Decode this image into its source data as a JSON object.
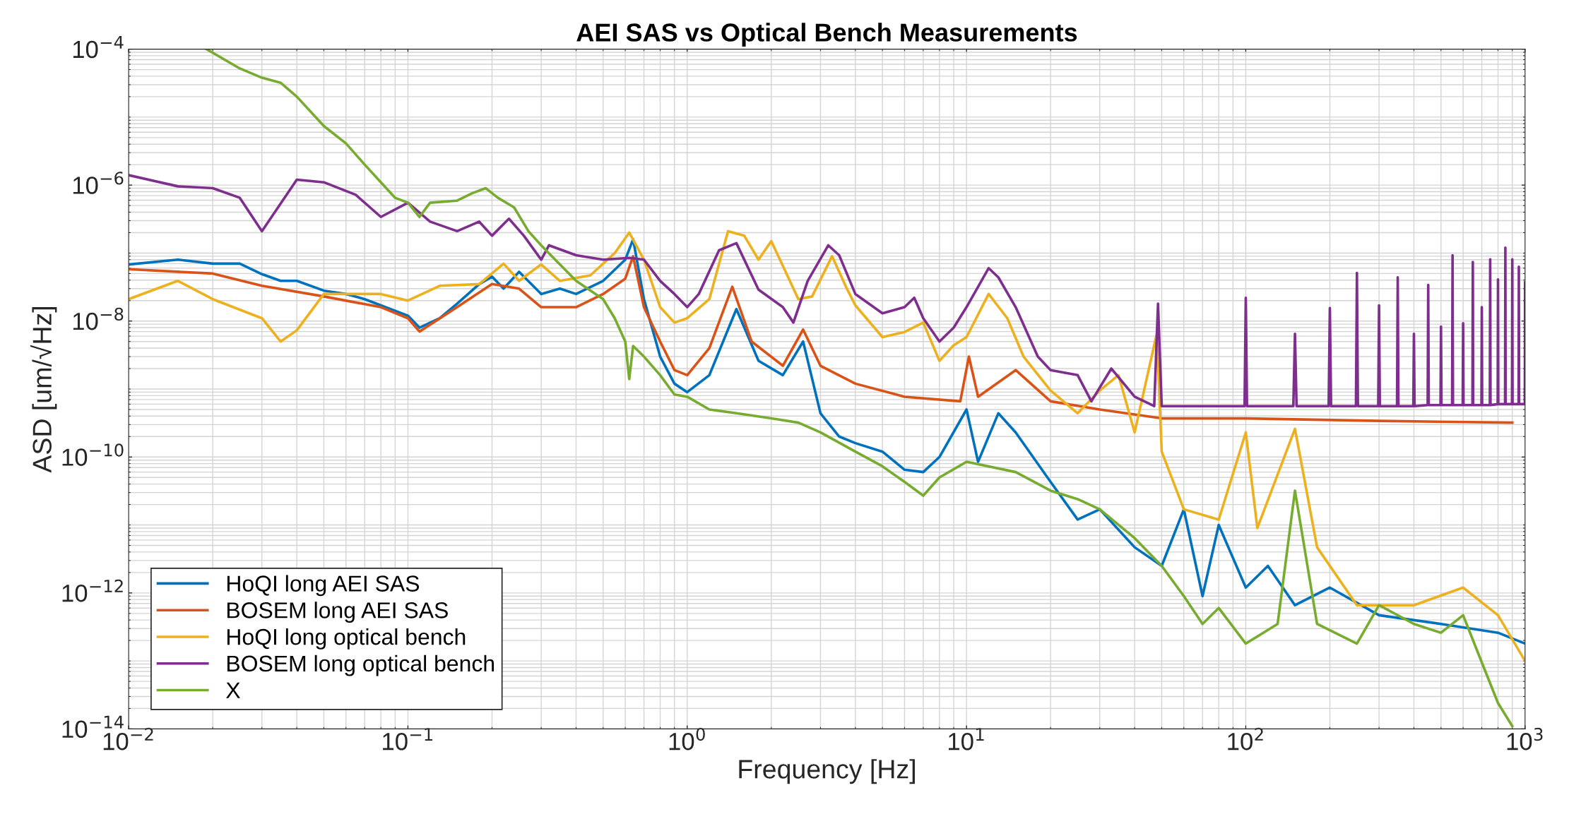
{
  "chart_data": {
    "type": "line",
    "title": "AEI SAS vs Optical Bench Measurements",
    "xlabel": "Frequency [Hz]",
    "ylabel": "ASD [um/√Hz]",
    "log": "xy",
    "grid": true,
    "legend": "bottom left",
    "line_style": "solid",
    "marker": "none",
    "xlim": [
      0.01,
      1000
    ],
    "ylim": [
      1e-14,
      0.0001
    ],
    "xticks": [
      {
        "value": 0.01,
        "label": "10$^{−2}$"
      },
      {
        "value": 0.1,
        "label": "10$^{−1}$"
      },
      {
        "value": 1,
        "label": "10$^{0}$"
      },
      {
        "value": 10,
        "label": "10$^{1}$"
      },
      {
        "value": 100,
        "label": "10$^{2}$"
      },
      {
        "value": 1000,
        "label": "10$^{3}$"
      }
    ],
    "yticks": [
      {
        "value": 1e-14,
        "label": "10$^{−14}$"
      },
      {
        "value": 1e-12,
        "label": "10$^{−12}$"
      },
      {
        "value": 1e-10,
        "label": "10$^{−10}$"
      },
      {
        "value": 1e-08,
        "label": "10$^{−8}$"
      },
      {
        "value": 1e-06,
        "label": "10$^{−6}$"
      },
      {
        "value": 0.0001,
        "label": "10$^{−4}$"
      }
    ],
    "series": [
      {
        "name": "HoQI long AEI SAS",
        "color": "#0072bd",
        "x": [
          0.01,
          0.015,
          0.02,
          0.025,
          0.03,
          0.035,
          0.04,
          0.05,
          0.06,
          0.07,
          0.08,
          0.1,
          0.11,
          0.13,
          0.15,
          0.18,
          0.2,
          0.22,
          0.25,
          0.3,
          0.35,
          0.4,
          0.5,
          0.6,
          0.64,
          0.7,
          0.8,
          0.9,
          1.0,
          1.2,
          1.5,
          1.8,
          2.2,
          2.6,
          3.0,
          3.5,
          4,
          5,
          6,
          7,
          8,
          10,
          11,
          13,
          15,
          20,
          25,
          30,
          40,
          50,
          60,
          70,
          80,
          100,
          120,
          150,
          200,
          300,
          500,
          800,
          1000
        ],
        "values": [
          6.8e-08,
          8e-08,
          7e-08,
          7e-08,
          4.9e-08,
          3.9e-08,
          3.9e-08,
          2.8e-08,
          2.5e-08,
          2.1e-08,
          1.7e-08,
          1.2e-08,
          8e-09,
          1.1e-08,
          1.8e-08,
          3.5e-08,
          4.5e-08,
          3e-08,
          5.3e-08,
          2.5e-08,
          3e-08,
          2.5e-08,
          3.9e-08,
          8e-08,
          1.6e-07,
          2.1e-08,
          3e-09,
          1.2e-09,
          9e-10,
          1.6e-09,
          1.5e-08,
          2.6e-09,
          1.6e-09,
          5e-09,
          4.4e-10,
          2e-10,
          1.6e-10,
          1.2e-10,
          6.5e-11,
          6e-11,
          1e-10,
          5e-10,
          8.5e-11,
          4.4e-10,
          2.3e-10,
          4.3e-11,
          1.2e-11,
          1.7e-11,
          4.7e-12,
          2.5e-12,
          1.7e-11,
          9e-13,
          1e-11,
          1.2e-12,
          2.5e-12,
          6.6e-13,
          1.2e-12,
          4.7e-13,
          3.5e-13,
          2.6e-13,
          1.8e-13
        ]
      },
      {
        "name": "BOSEM long AEI SAS",
        "color": "#d95319",
        "x": [
          0.01,
          0.02,
          0.03,
          0.05,
          0.08,
          0.1,
          0.11,
          0.15,
          0.2,
          0.25,
          0.3,
          0.4,
          0.5,
          0.6,
          0.64,
          0.7,
          0.8,
          0.9,
          1.0,
          1.2,
          1.45,
          1.7,
          2.2,
          2.6,
          3,
          4,
          6,
          9.5,
          10.2,
          11,
          15,
          20,
          30,
          50,
          100,
          300,
          900
        ],
        "values": [
          5.8e-08,
          5e-08,
          3.3e-08,
          2.3e-08,
          1.6e-08,
          1.1e-08,
          7e-09,
          1.6e-08,
          3.5e-08,
          3e-08,
          1.6e-08,
          1.6e-08,
          2.5e-08,
          4.2e-08,
          9e-08,
          1.6e-08,
          5e-09,
          1.9e-09,
          1.6e-09,
          4e-09,
          3.2e-08,
          5e-09,
          2.2e-09,
          7.5e-09,
          2.2e-09,
          1.2e-09,
          7.7e-10,
          6.6e-10,
          3e-09,
          7.7e-10,
          1.9e-09,
          6.6e-10,
          5e-10,
          3.7e-10,
          3.7e-10,
          3.4e-10,
          3.2e-10
        ]
      },
      {
        "name": "HoQI long optical bench",
        "color": "#edb120",
        "x": [
          0.01,
          0.015,
          0.02,
          0.03,
          0.035,
          0.04,
          0.05,
          0.08,
          0.1,
          0.13,
          0.18,
          0.22,
          0.25,
          0.3,
          0.35,
          0.45,
          0.55,
          0.62,
          0.7,
          0.8,
          0.9,
          1.0,
          1.2,
          1.4,
          1.6,
          1.8,
          2.0,
          2.5,
          2.8,
          3.3,
          3.7,
          4,
          5,
          6,
          7,
          8,
          9,
          10,
          12,
          14,
          16,
          20,
          25,
          30,
          35,
          40,
          48,
          50,
          60,
          80,
          100,
          110,
          150,
          180,
          250,
          400,
          600,
          800,
          1000
        ],
        "values": [
          2.1e-08,
          3.9e-08,
          2.1e-08,
          1.1e-08,
          5e-09,
          7.3e-09,
          2.5e-08,
          2.5e-08,
          2e-08,
          3.3e-08,
          3.5e-08,
          7e-08,
          3.9e-08,
          6.8e-08,
          3.9e-08,
          4.7e-08,
          1e-07,
          2e-07,
          8e-08,
          1.6e-08,
          9.5e-09,
          1.1e-08,
          2.1e-08,
          2.1e-07,
          1.8e-07,
          8e-08,
          1.5e-07,
          2.1e-08,
          2.3e-08,
          9e-08,
          3.2e-08,
          1.7e-08,
          5.8e-09,
          6.9e-09,
          9.5e-09,
          2.6e-09,
          4.4e-09,
          5.8e-09,
          2.5e-08,
          1.1e-08,
          3e-09,
          9.5e-10,
          4.4e-10,
          9.5e-10,
          1.6e-09,
          2.3e-10,
          6.5e-09,
          1.2e-10,
          1.7e-11,
          1.2e-11,
          2.3e-10,
          9e-12,
          2.6e-10,
          4.7e-12,
          6.6e-13,
          6.6e-13,
          1.2e-12,
          4.7e-13,
          1e-13
        ]
      },
      {
        "name": "BOSEM long optical bench",
        "color": "#7e2f8e",
        "x": [
          0.01,
          0.015,
          0.02,
          0.025,
          0.03,
          0.04,
          0.05,
          0.065,
          0.08,
          0.1,
          0.12,
          0.15,
          0.18,
          0.2,
          0.23,
          0.26,
          0.3,
          0.32,
          0.4,
          0.5,
          0.62,
          0.7,
          0.8,
          0.9,
          1.0,
          1.1,
          1.3,
          1.5,
          1.8,
          2.2,
          2.4,
          2.7,
          3.2,
          3.5,
          4,
          5,
          6,
          6.5,
          7,
          8,
          9,
          10,
          12,
          13,
          15,
          18,
          20,
          25,
          28,
          33,
          40,
          47,
          48.5,
          50,
          80,
          99,
          100,
          101,
          148,
          150,
          152,
          198,
          200,
          202,
          248,
          250,
          252,
          298,
          300,
          302,
          348,
          350,
          352,
          398,
          400,
          402,
          448,
          450,
          452,
          498,
          500,
          502,
          548,
          550,
          552,
          598,
          600,
          602,
          648,
          650,
          652,
          698,
          700,
          702,
          748,
          750,
          752,
          798,
          800,
          802,
          848,
          850,
          852,
          898,
          900,
          902,
          948,
          950,
          952,
          998,
          1000
        ],
        "values": [
          1.4e-06,
          9.6e-07,
          9e-07,
          6.5e-07,
          2.1e-07,
          1.2e-06,
          1.1e-06,
          7.2e-07,
          3.4e-07,
          5.5e-07,
          2.9e-07,
          2.1e-07,
          2.9e-07,
          1.8e-07,
          3.2e-07,
          1.8e-07,
          8e-08,
          1.3e-07,
          9.3e-08,
          8e-08,
          8.5e-08,
          8e-08,
          3.9e-08,
          2.5e-08,
          1.6e-08,
          2.5e-08,
          1.1e-07,
          1.4e-07,
          2.9e-08,
          1.6e-08,
          9.5e-09,
          3.9e-08,
          1.3e-07,
          9.3e-08,
          2.5e-08,
          1.3e-08,
          1.6e-08,
          2.2e-08,
          1.1e-08,
          5e-09,
          8e-09,
          1.6e-08,
          6e-08,
          4.4e-08,
          1.6e-08,
          3e-09,
          1.9e-09,
          1.6e-09,
          6.6e-10,
          2e-09,
          7.7e-10,
          5.6e-10,
          1.8e-08,
          5.6e-10,
          5.6e-10,
          5.6e-10,
          2.2e-08,
          5.6e-10,
          5.6e-10,
          6.5e-09,
          5.6e-10,
          5.6e-10,
          1.55e-08,
          5.6e-10,
          5.6e-10,
          5.1e-08,
          5.6e-10,
          5.6e-10,
          1.7e-08,
          5.6e-10,
          5.6e-10,
          4.4e-08,
          5.6e-10,
          5.6e-10,
          6.5e-09,
          5.6e-10,
          5.8e-10,
          3.4e-08,
          5.8e-10,
          5.8e-10,
          8.3e-09,
          5.8e-10,
          5.8e-10,
          9.3e-08,
          5.8e-10,
          5.8e-10,
          9.3e-09,
          5.8e-10,
          5.8e-10,
          7.4e-08,
          5.8e-10,
          5.8e-10,
          1.6e-08,
          5.8e-10,
          5.8e-10,
          8.1e-08,
          5.8e-10,
          6e-10,
          4.1e-08,
          6e-10,
          6e-10,
          1.2e-07,
          6e-10,
          6e-10,
          8.1e-08,
          6e-10,
          6e-10,
          6.3e-08,
          6e-10,
          6e-10,
          3.7e-08
        ]
      },
      {
        "name": "X",
        "color": "#77ac30",
        "x": [
          0.019,
          0.025,
          0.03,
          0.035,
          0.04,
          0.05,
          0.06,
          0.07,
          0.08,
          0.09,
          0.1,
          0.11,
          0.12,
          0.15,
          0.17,
          0.19,
          0.21,
          0.24,
          0.27,
          0.3,
          0.35,
          0.4,
          0.5,
          0.55,
          0.6,
          0.62,
          0.64,
          0.7,
          0.8,
          0.9,
          1.0,
          1.2,
          1.5,
          2,
          2.5,
          3,
          4,
          5,
          6,
          7,
          8,
          10,
          15,
          20,
          25,
          30,
          40,
          50,
          60,
          70,
          80,
          100,
          130,
          150,
          180,
          250,
          300,
          400,
          500,
          600,
          700,
          800,
          900
        ],
        "values": [
          0.0001,
          5.2e-05,
          3.8e-05,
          3.2e-05,
          2e-05,
          7.4e-06,
          4.1e-06,
          2e-06,
          1.1e-06,
          6.5e-07,
          5.5e-07,
          3.4e-07,
          5.5e-07,
          5.9e-07,
          7.6e-07,
          9e-07,
          6.5e-07,
          4.7e-07,
          2.1e-07,
          1.3e-07,
          6.8e-08,
          3.9e-08,
          2.1e-08,
          1.1e-08,
          5e-09,
          1.4e-09,
          4.3e-09,
          3e-09,
          1.6e-09,
          8.3e-10,
          7.7e-10,
          5e-10,
          4.4e-10,
          3.7e-10,
          3.2e-10,
          2.3e-10,
          1.2e-10,
          7.3e-11,
          4.3e-11,
          2.7e-11,
          5e-11,
          8.5e-11,
          6e-11,
          3.2e-11,
          2.4e-11,
          1.7e-11,
          6.4e-12,
          2.5e-12,
          9e-13,
          3.5e-13,
          6e-13,
          1.8e-13,
          3.5e-13,
          3.2e-11,
          3.5e-13,
          1.8e-13,
          6.6e-13,
          3.5e-13,
          2.6e-13,
          4.7e-13,
          9.5e-14,
          2.4e-14,
          1.1e-14
        ]
      }
    ]
  }
}
